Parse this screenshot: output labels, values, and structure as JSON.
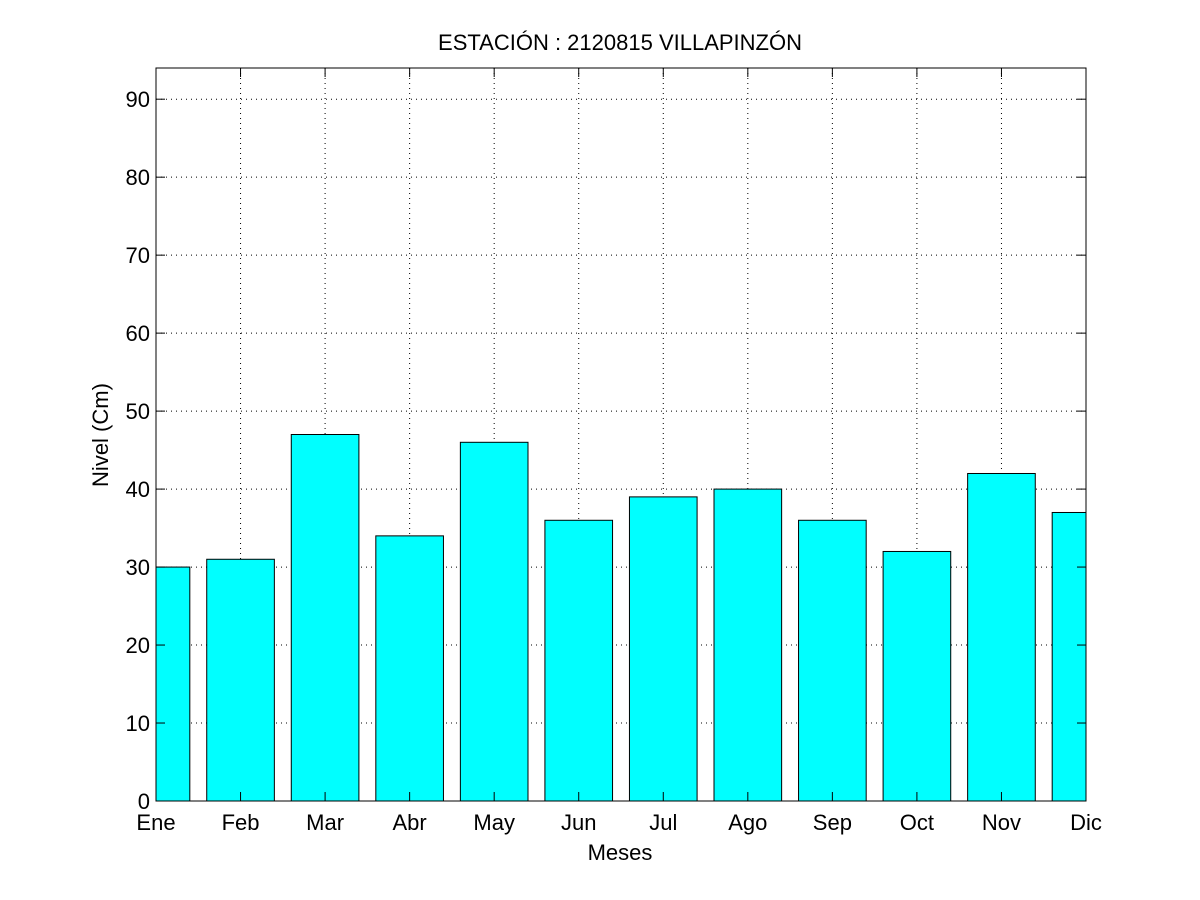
{
  "chart_data": {
    "type": "bar",
    "title": "ESTACIÓN :  2120815  VILLAPINZÓN",
    "xlabel": "Meses",
    "ylabel": "Nivel (Cm)",
    "categories": [
      "Ene",
      "Feb",
      "Mar",
      "Abr",
      "May",
      "Jun",
      "Jul",
      "Ago",
      "Sep",
      "Oct",
      "Nov",
      "Dic"
    ],
    "values": [
      30,
      31,
      47,
      34,
      46,
      36,
      39,
      40,
      36,
      32,
      42,
      37
    ],
    "ylim": [
      0,
      94
    ],
    "yticks": [
      0,
      10,
      20,
      30,
      40,
      50,
      60,
      70,
      80,
      90
    ],
    "grid": true,
    "bar_color": "#00ffff",
    "edge_color": "#000000"
  }
}
